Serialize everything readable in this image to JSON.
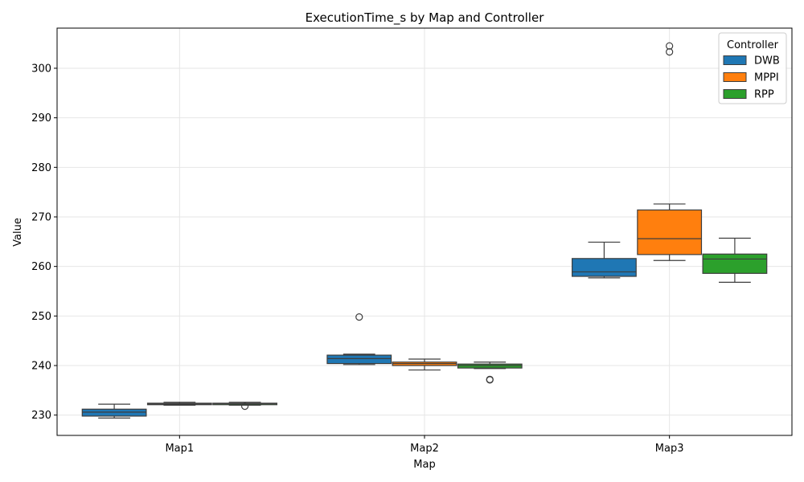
{
  "chart_data": {
    "type": "box",
    "title": "ExecutionTime_s by Map and Controller",
    "xlabel": "Map",
    "ylabel": "Value",
    "categories": [
      "Map1",
      "Map2",
      "Map3"
    ],
    "ylim": [
      225.9,
      308.1
    ],
    "yticks": [
      230,
      240,
      250,
      260,
      270,
      280,
      290,
      300
    ],
    "grid": true,
    "legend": {
      "title": "Controller",
      "position": "top-right"
    },
    "series": [
      {
        "name": "DWB",
        "color": "#1f77b4",
        "boxes": [
          {
            "whisker_low": 229.4,
            "q1": 229.8,
            "median": 230.6,
            "q3": 231.2,
            "whisker_high": 232.2,
            "outliers": []
          },
          {
            "whisker_low": 240.2,
            "q1": 240.4,
            "median": 241.4,
            "q3": 242.1,
            "whisker_high": 242.3,
            "outliers": [
              249.8
            ]
          },
          {
            "whisker_low": 257.7,
            "q1": 258.0,
            "median": 258.9,
            "q3": 261.6,
            "whisker_high": 264.9,
            "outliers": []
          }
        ]
      },
      {
        "name": "MPPI",
        "color": "#ff7f0e",
        "boxes": [
          {
            "whisker_low": 232.0,
            "q1": 232.1,
            "median": 232.2,
            "q3": 232.4,
            "whisker_high": 232.6,
            "outliers": []
          },
          {
            "whisker_low": 239.1,
            "q1": 240.0,
            "median": 240.4,
            "q3": 240.7,
            "whisker_high": 241.3,
            "outliers": []
          },
          {
            "whisker_low": 261.2,
            "q1": 262.4,
            "median": 265.6,
            "q3": 271.4,
            "whisker_high": 272.6,
            "outliers": [
              303.3,
              304.5
            ]
          }
        ]
      },
      {
        "name": "RPP",
        "color": "#2ca02c",
        "boxes": [
          {
            "whisker_low": 232.0,
            "q1": 232.1,
            "median": 232.3,
            "q3": 232.4,
            "whisker_high": 232.6,
            "outliers": [
              231.8
            ]
          },
          {
            "whisker_low": 239.4,
            "q1": 239.5,
            "median": 240.0,
            "q3": 240.3,
            "whisker_high": 240.7,
            "outliers": [
              237.1,
              237.2
            ]
          },
          {
            "whisker_low": 256.8,
            "q1": 258.6,
            "median": 261.5,
            "q3": 262.5,
            "whisker_high": 265.7,
            "outliers": []
          }
        ]
      }
    ]
  }
}
